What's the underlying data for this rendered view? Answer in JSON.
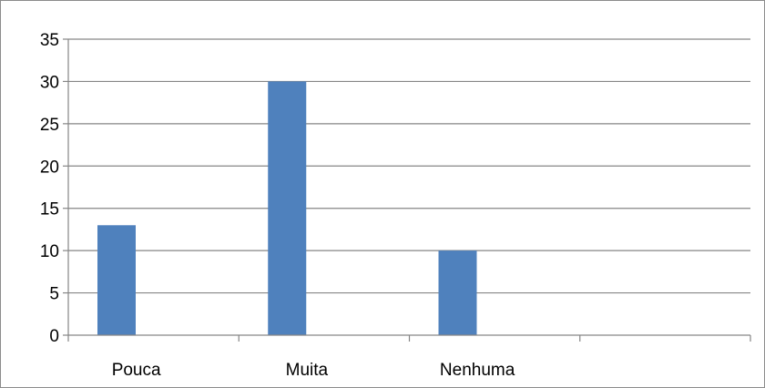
{
  "chart_data": {
    "type": "bar",
    "categories": [
      "Pouca",
      "Muita",
      "Nenhuma",
      ""
    ],
    "series": [
      {
        "values": [
          13,
          30,
          10,
          null
        ],
        "color": "#4f81bd"
      }
    ],
    "title": "",
    "xlabel": "",
    "ylabel": "",
    "ylim": [
      0,
      35
    ],
    "yticks": [
      0,
      5,
      10,
      15,
      20,
      25,
      30,
      35
    ],
    "grid": "horizontal",
    "legend": "none",
    "gridline_color": "#868686",
    "axis_color": "#868686"
  }
}
